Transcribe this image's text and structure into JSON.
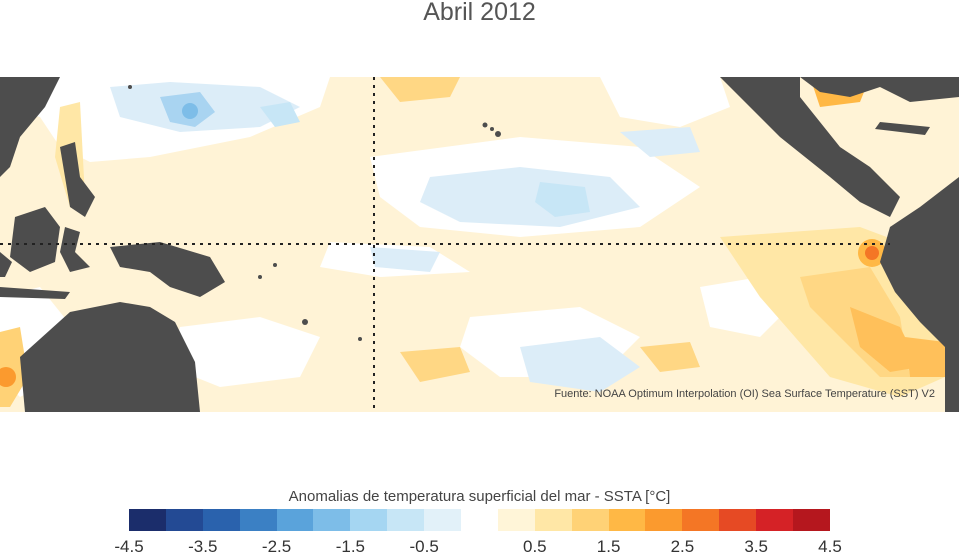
{
  "title": "Abril 2012",
  "source": "Fuente: NOAA Optimum Interpolation (OI) Sea Surface Temperature (SST) V2",
  "legend": {
    "title": "Anomalias de temperatura superficial del mar - SSTA  [°C]",
    "colors": [
      "#1b2d6b",
      "#234a94",
      "#2a62ad",
      "#3b80c4",
      "#5aa3db",
      "#7dbde8",
      "#a5d6f2",
      "#c7e6f6",
      "#e2f1f9",
      "#ffffff",
      "#fff5d8",
      "#ffe7a6",
      "#ffd276",
      "#ffb845",
      "#fb9a2e",
      "#f47625",
      "#e64a24",
      "#d52226",
      "#b5171e"
    ],
    "ticks": [
      "-4.5",
      "-3.5",
      "-2.5",
      "-1.5",
      "-0.5",
      "0.5",
      "1.5",
      "2.5",
      "3.5",
      "4.5"
    ]
  },
  "colors": {
    "land": "#4d4d4d",
    "warm_weak": "#fff1cc",
    "warm_mid": "#ffd784",
    "warm_strong": "#f99a37",
    "cool_weak": "#dcedf8",
    "cool_mid": "#a9d4f1"
  }
}
